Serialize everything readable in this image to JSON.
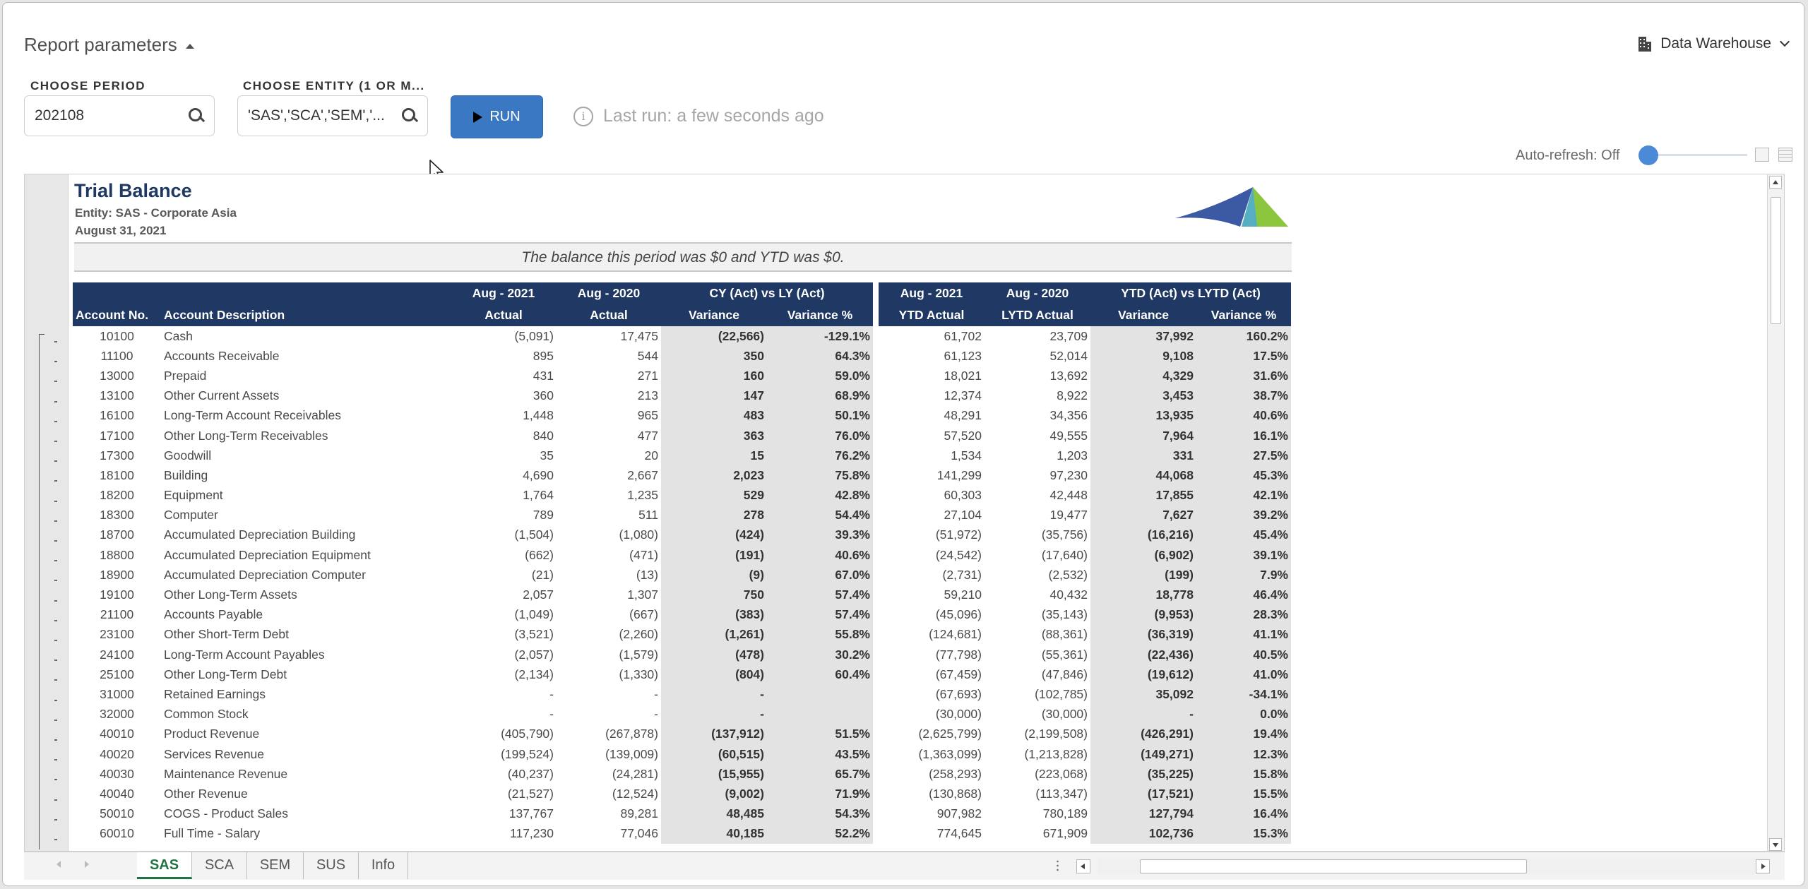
{
  "header": {
    "report_params_label": "Report parameters",
    "data_source_label": "Data Warehouse",
    "period": {
      "label": "CHOOSE PERIOD",
      "value": "202108"
    },
    "entity": {
      "label": "CHOOSE ENTITY (1 OR M...",
      "value": "'SAS','SCA','SEM','..."
    },
    "run_label": "RUN",
    "last_run": "Last run: a few seconds ago",
    "auto_refresh": "Auto-refresh: Off",
    "auto_refresh_on": false,
    "accent_color": "#3a78c3"
  },
  "report": {
    "title": "Trial Balance",
    "entity": "Entity: SAS - Corporate Asia",
    "date": "August 31, 2021",
    "banner": "The balance this period was $0 and YTD was $0.",
    "header_color": "#1f3864",
    "group_headers": {
      "aug2021": "Aug - 2021",
      "aug2020": "Aug - 2020",
      "cy_vs_ly": "CY (Act) vs LY (Act)",
      "ytd_aug2021": "Aug - 2021",
      "ytd_aug2020": "Aug - 2020",
      "ytd_vs_lytd": "YTD (Act) vs LYTD (Act)"
    },
    "columns": {
      "account_no": "Account No.",
      "account_desc": "Account Description",
      "actual": "Actual",
      "actual_ly": "Actual",
      "variance": "Variance",
      "variance_pct": "Variance %",
      "ytd_actual": "YTD Actual",
      "lytd_actual": "LYTD Actual",
      "ytd_variance": "Variance",
      "ytd_variance_pct": "Variance %"
    },
    "rows": [
      [
        "10100",
        "Cash",
        "(5,091)",
        "17,475",
        "(22,566)",
        "-129.1%",
        "61,702",
        "23,709",
        "37,992",
        "160.2%"
      ],
      [
        "11100",
        "Accounts Receivable",
        "895",
        "544",
        "350",
        "64.3%",
        "61,123",
        "52,014",
        "9,108",
        "17.5%"
      ],
      [
        "13000",
        "Prepaid",
        "431",
        "271",
        "160",
        "59.0%",
        "18,021",
        "13,692",
        "4,329",
        "31.6%"
      ],
      [
        "13100",
        "Other Current Assets",
        "360",
        "213",
        "147",
        "68.9%",
        "12,374",
        "8,922",
        "3,453",
        "38.7%"
      ],
      [
        "16100",
        "Long-Term Account Receivables",
        "1,448",
        "965",
        "483",
        "50.1%",
        "48,291",
        "34,356",
        "13,935",
        "40.6%"
      ],
      [
        "17100",
        "Other Long-Term Receivables",
        "840",
        "477",
        "363",
        "76.0%",
        "57,520",
        "49,555",
        "7,964",
        "16.1%"
      ],
      [
        "17300",
        "Goodwill",
        "35",
        "20",
        "15",
        "76.2%",
        "1,534",
        "1,203",
        "331",
        "27.5%"
      ],
      [
        "18100",
        "Building",
        "4,690",
        "2,667",
        "2,023",
        "75.8%",
        "141,299",
        "97,230",
        "44,068",
        "45.3%"
      ],
      [
        "18200",
        "Equipment",
        "1,764",
        "1,235",
        "529",
        "42.8%",
        "60,303",
        "42,448",
        "17,855",
        "42.1%"
      ],
      [
        "18300",
        "Computer",
        "789",
        "511",
        "278",
        "54.4%",
        "27,104",
        "19,477",
        "7,627",
        "39.2%"
      ],
      [
        "18700",
        "Accumulated Depreciation Building",
        "(1,504)",
        "(1,080)",
        "(424)",
        "39.3%",
        "(51,972)",
        "(35,756)",
        "(16,216)",
        "45.4%"
      ],
      [
        "18800",
        "Accumulated Depreciation Equipment",
        "(662)",
        "(471)",
        "(191)",
        "40.6%",
        "(24,542)",
        "(17,640)",
        "(6,902)",
        "39.1%"
      ],
      [
        "18900",
        "Accumulated Depreciation Computer",
        "(21)",
        "(13)",
        "(9)",
        "67.0%",
        "(2,731)",
        "(2,532)",
        "(199)",
        "7.9%"
      ],
      [
        "19100",
        "Other Long-Term Assets",
        "2,057",
        "1,307",
        "750",
        "57.4%",
        "59,210",
        "40,432",
        "18,778",
        "46.4%"
      ],
      [
        "21100",
        "Accounts Payable",
        "(1,049)",
        "(667)",
        "(383)",
        "57.4%",
        "(45,096)",
        "(35,143)",
        "(9,953)",
        "28.3%"
      ],
      [
        "23100",
        "Other Short-Term Debt",
        "(3,521)",
        "(2,260)",
        "(1,261)",
        "55.8%",
        "(124,681)",
        "(88,361)",
        "(36,319)",
        "41.1%"
      ],
      [
        "24100",
        "Long-Term Account Payables",
        "(2,057)",
        "(1,579)",
        "(478)",
        "30.2%",
        "(77,798)",
        "(55,361)",
        "(22,436)",
        "40.5%"
      ],
      [
        "25100",
        "Other Long-Term Debt",
        "(2,134)",
        "(1,330)",
        "(804)",
        "60.4%",
        "(67,459)",
        "(47,846)",
        "(19,612)",
        "41.0%"
      ],
      [
        "31000",
        "Retained Earnings",
        "-",
        "-",
        "-",
        "",
        "(67,693)",
        "(102,785)",
        "35,092",
        "-34.1%"
      ],
      [
        "32000",
        "Common Stock",
        "-",
        "-",
        "-",
        "",
        "(30,000)",
        "(30,000)",
        "-",
        "0.0%"
      ],
      [
        "40010",
        "Product Revenue",
        "(405,790)",
        "(267,878)",
        "(137,912)",
        "51.5%",
        "(2,625,799)",
        "(2,199,508)",
        "(426,291)",
        "19.4%"
      ],
      [
        "40020",
        "Services Revenue",
        "(199,524)",
        "(139,009)",
        "(60,515)",
        "43.5%",
        "(1,363,099)",
        "(1,213,828)",
        "(149,271)",
        "12.3%"
      ],
      [
        "40030",
        "Maintenance Revenue",
        "(40,237)",
        "(24,281)",
        "(15,955)",
        "65.7%",
        "(258,293)",
        "(223,068)",
        "(35,225)",
        "15.8%"
      ],
      [
        "40040",
        "Other Revenue",
        "(21,527)",
        "(12,524)",
        "(9,002)",
        "71.9%",
        "(130,868)",
        "(113,347)",
        "(17,521)",
        "15.5%"
      ],
      [
        "50010",
        "COGS - Product Sales",
        "137,767",
        "89,281",
        "48,485",
        "54.3%",
        "907,982",
        "780,189",
        "127,794",
        "16.4%"
      ],
      [
        "60010",
        "Full Time - Salary",
        "117,230",
        "77,046",
        "40,185",
        "52.2%",
        "774,645",
        "671,909",
        "102,736",
        "15.3%"
      ]
    ]
  },
  "sheet_tabs": [
    {
      "label": "SAS",
      "active": true
    },
    {
      "label": "SCA",
      "active": false
    },
    {
      "label": "SEM",
      "active": false
    },
    {
      "label": "SUS",
      "active": false
    },
    {
      "label": "Info",
      "active": false
    }
  ]
}
